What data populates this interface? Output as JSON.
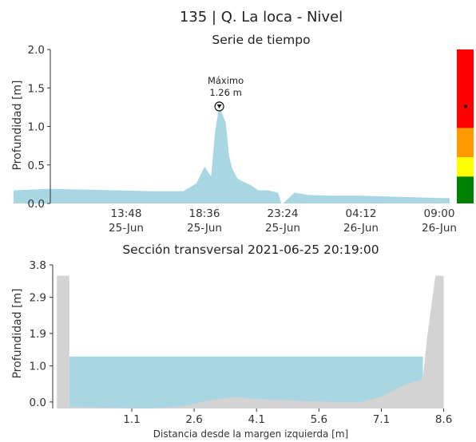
{
  "header": {
    "title": "135 | Q. La loca - Nivel",
    "subtitle_top": "Serie de tiempo",
    "subtitle_bottom": "Sección transversal 2021-06-25 20:19:00"
  },
  "colors": {
    "series": "#a8d6e3",
    "ground": "#d3d3d3",
    "red": "#ff0000",
    "orange": "#ff9900",
    "yellow": "#ffff00",
    "green": "#008000"
  },
  "chart_data": [
    {
      "type": "area",
      "title": "Serie de tiempo",
      "ylabel": "Profundidad [m]",
      "ylim": [
        0,
        2.0
      ],
      "yticks": [
        "0.0",
        "0.5",
        "1.0",
        "1.5",
        "2.0"
      ],
      "xtick_labels": [
        {
          "time": "13:48",
          "date": "25-Jun"
        },
        {
          "time": "18:36",
          "date": "25-Jun"
        },
        {
          "time": "23:24",
          "date": "25-Jun"
        },
        {
          "time": "04:12",
          "date": "26-Jun"
        },
        {
          "time": "09:00",
          "date": "26-Jun"
        }
      ],
      "x_hours_from_1348": [
        -6.9,
        -4.8,
        -2.4,
        -0.5,
        1.5,
        3.5,
        4.3,
        4.8,
        5.2,
        5.45,
        5.7,
        6.1,
        6.3,
        6.5,
        6.8,
        7.0,
        7.3,
        7.6,
        8.1,
        8.7,
        9.3,
        9.5,
        9.6,
        10.3,
        11.2,
        12.6,
        14.4,
        16.0,
        17.6,
        19.3,
        19.8
      ],
      "y": [
        0.17,
        0.19,
        0.18,
        0.17,
        0.16,
        0.16,
        0.26,
        0.48,
        0.35,
        0.95,
        1.26,
        1.05,
        0.62,
        0.45,
        0.33,
        0.3,
        0.27,
        0.24,
        0.17,
        0.17,
        0.14,
        0.0,
        0.0,
        0.14,
        0.11,
        0.1,
        0.1,
        0.09,
        0.08,
        0.07,
        0.07
      ],
      "annotation": {
        "label": "Máximo",
        "value_label": "1.26 m",
        "value": 1.26
      },
      "alert_bar": {
        "levels": [
          "green",
          "yellow",
          "orange",
          "red"
        ],
        "boundaries": [
          0.0,
          0.35,
          0.6,
          0.98,
          2.0
        ],
        "marker_value": 1.26
      }
    },
    {
      "type": "area",
      "title": "Sección transversal 2021-06-25 20:19:00",
      "xlabel": "Distancia desde la margen izquierda [m]",
      "ylabel": "Profundidad [m]",
      "xlim": [
        -0.8,
        8.8
      ],
      "ylim": [
        -0.18,
        3.8
      ],
      "xticks": [
        "1.1",
        "2.6",
        "4.1",
        "5.6",
        "7.1",
        "8.6"
      ],
      "yticks": [
        "0.0",
        "1.0",
        "1.9",
        "2.9",
        "3.8"
      ],
      "water_level": 1.26,
      "water_x_range": [
        -0.4,
        8.1
      ],
      "ground_x": [
        -0.7,
        -0.4,
        -0.4,
        0.5,
        1.5,
        2.3,
        3.0,
        3.6,
        3.9,
        4.2,
        4.8,
        5.4,
        6.0,
        6.6,
        7.1,
        7.6,
        8.0,
        8.1,
        8.2,
        8.4,
        8.6
      ],
      "ground_y": [
        3.5,
        3.5,
        -0.13,
        -0.16,
        -0.18,
        -0.12,
        0.05,
        0.15,
        0.1,
        0.08,
        0.05,
        0.02,
        0.0,
        0.0,
        0.15,
        0.45,
        0.6,
        0.65,
        1.8,
        3.5,
        3.5
      ]
    }
  ]
}
